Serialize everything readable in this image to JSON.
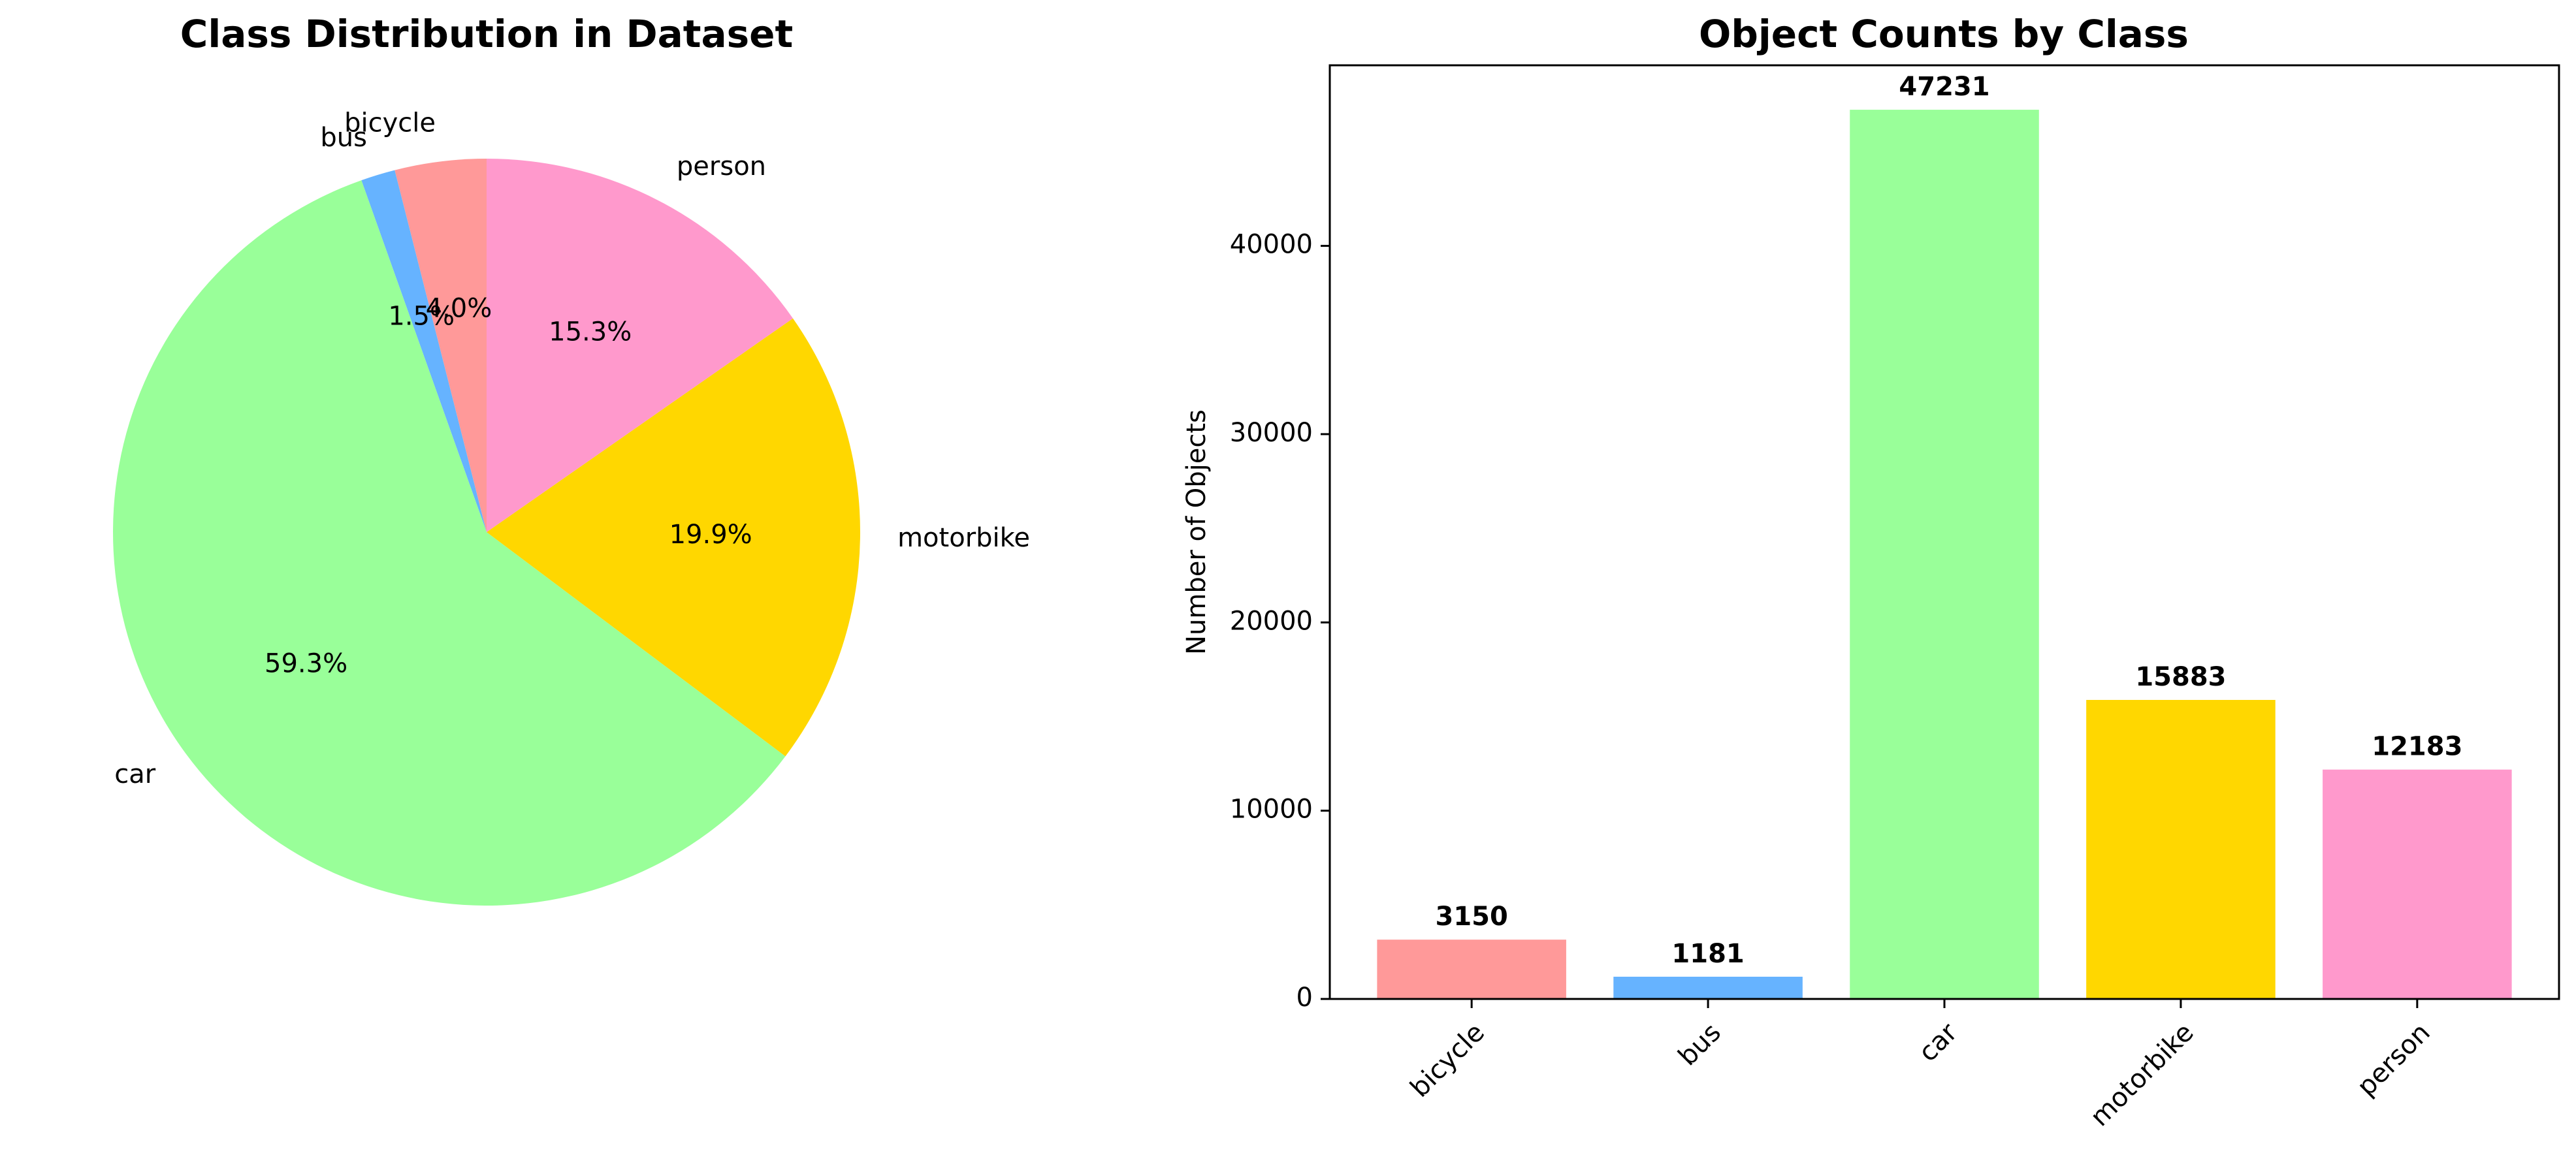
{
  "chart_data": [
    {
      "type": "pie",
      "title": "Class Distribution in Dataset",
      "categories": [
        "bicycle",
        "bus",
        "car",
        "motorbike",
        "person"
      ],
      "values": [
        3150,
        1181,
        47231,
        15883,
        12183
      ],
      "percent_labels": [
        "4.0%",
        "1.5%",
        "59.3%",
        "19.9%",
        "15.3%"
      ],
      "colors": [
        "#ff9999",
        "#66b3ff",
        "#99ff99",
        "#ffd700",
        "#ff99cc"
      ],
      "start_angle_deg": 90,
      "direction": "counterclockwise"
    },
    {
      "type": "bar",
      "title": "Object Counts by Class",
      "categories": [
        "bicycle",
        "bus",
        "car",
        "motorbike",
        "person"
      ],
      "values": [
        3150,
        1181,
        47231,
        15883,
        12183
      ],
      "value_labels": [
        "3150",
        "1181",
        "47231",
        "15883",
        "12183"
      ],
      "colors": [
        "#ff9999",
        "#66b3ff",
        "#99ff99",
        "#ffd700",
        "#ff99cc"
      ],
      "xlabel": "",
      "ylabel": "Number of Objects",
      "ylim": [
        0,
        49592
      ],
      "yticks": [
        0,
        10000,
        20000,
        30000,
        40000
      ],
      "ytick_labels": [
        "0",
        "10000",
        "20000",
        "30000",
        "40000"
      ],
      "xtick_rotation_deg": 45,
      "grid": false
    }
  ]
}
